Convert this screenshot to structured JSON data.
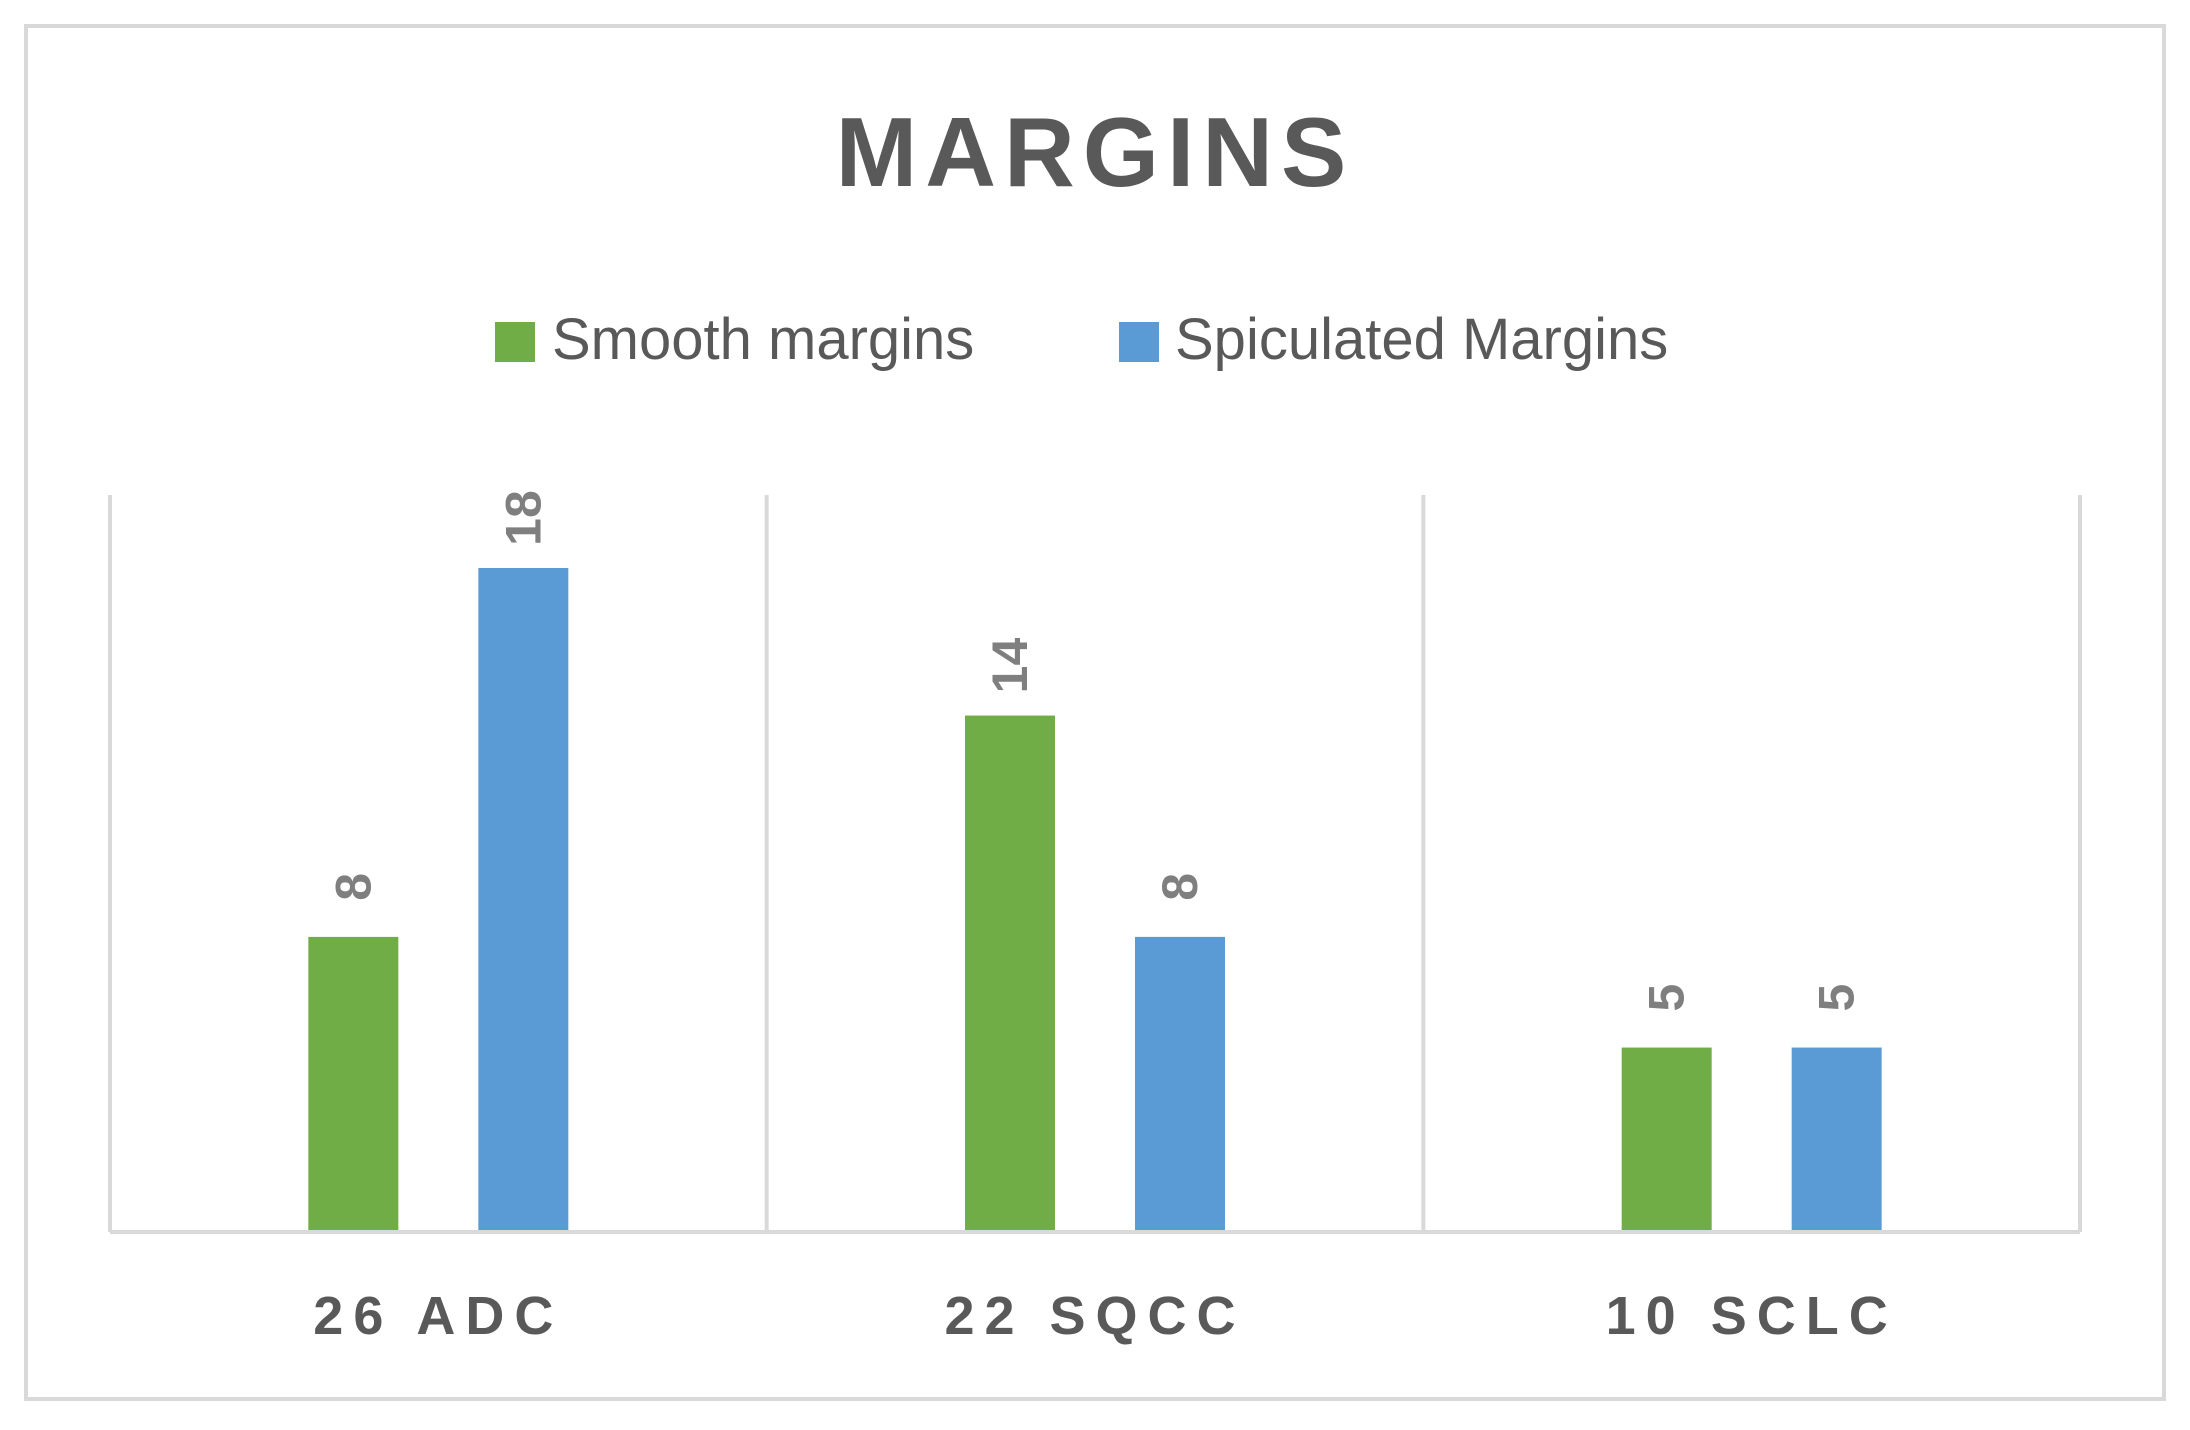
{
  "chart_data": {
    "type": "bar",
    "title": "MARGINS",
    "categories": [
      "26 ADC",
      "22 SQCC",
      "10 SCLC"
    ],
    "series": [
      {
        "name": "Smooth margins",
        "values": [
          8,
          14,
          5
        ],
        "color": "#70AD47"
      },
      {
        "name": "Spiculated Margins",
        "values": [
          18,
          8,
          5
        ],
        "color": "#5B9BD5"
      }
    ],
    "ylim": [
      0,
      20
    ],
    "xlabel": "",
    "ylabel": "",
    "grid": "vertical category separators",
    "legend_position": "top-center",
    "data_labels": true,
    "data_label_orientation": "vertical"
  }
}
